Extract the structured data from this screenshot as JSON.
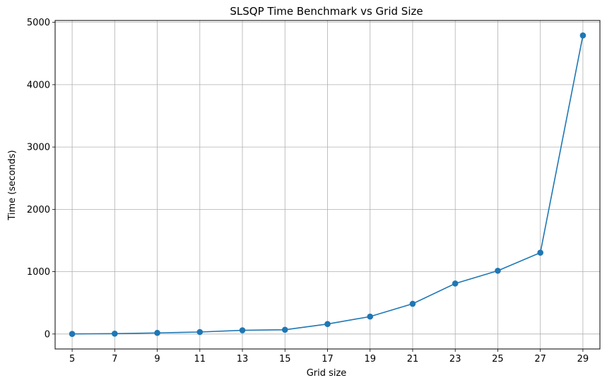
{
  "chart_data": {
    "type": "line",
    "title": "SLSQP Time Benchmark vs Grid Size",
    "xlabel": "Grid size",
    "ylabel": "Time (seconds)",
    "x": [
      5,
      7,
      9,
      11,
      13,
      15,
      17,
      19,
      21,
      23,
      25,
      27,
      29
    ],
    "xticks": [
      "5",
      "7",
      "9",
      "11",
      "13",
      "15",
      "17",
      "19",
      "21",
      "23",
      "25",
      "27",
      "29"
    ],
    "yticks": [
      "0",
      "1000",
      "2000",
      "3000",
      "4000",
      "5000"
    ],
    "ytick_values": [
      0,
      1000,
      2000,
      3000,
      4000,
      5000
    ],
    "series": [
      {
        "values": [
          2,
          6,
          18,
          32,
          60,
          68,
          160,
          280,
          485,
          810,
          1015,
          1305,
          4790
        ]
      }
    ],
    "xlim": [
      4.2,
      29.8
    ],
    "ylim": [
      -240,
      5030
    ],
    "grid": true,
    "marker": "circle",
    "line_color": "#1f77b4"
  }
}
